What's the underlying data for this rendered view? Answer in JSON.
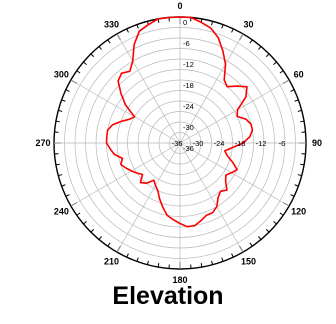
{
  "caption": "Elevation",
  "chart_data": {
    "type": "line",
    "subtype": "polar",
    "title": "Elevation",
    "angle_ticks": [
      "0",
      "30",
      "60",
      "90",
      "120",
      "150",
      "180",
      "210",
      "240",
      "270",
      "300",
      "330"
    ],
    "radial_ticks": [
      "0",
      "-6",
      "-12",
      "-18",
      "-24",
      "-30",
      "-36"
    ],
    "radial_range_db": [
      -36,
      0
    ],
    "theta_direction": "clockwise",
    "theta_zero": "top",
    "grid": true,
    "series": [
      {
        "color": "#ff0000",
        "theta_deg": [
          0,
          5,
          10,
          15,
          20,
          25,
          30,
          35,
          40,
          45,
          50,
          55,
          60,
          65,
          70,
          75,
          80,
          85,
          90,
          95,
          100,
          105,
          110,
          115,
          120,
          125,
          130,
          135,
          140,
          145,
          150,
          155,
          160,
          165,
          170,
          175,
          180,
          185,
          190,
          195,
          200,
          205,
          210,
          215,
          220,
          225,
          230,
          235,
          240,
          245,
          250,
          255,
          260,
          265,
          270,
          275,
          280,
          285,
          290,
          295,
          300,
          305,
          310,
          315,
          320,
          325,
          330,
          335,
          340,
          345,
          350,
          355
        ],
        "r_db": [
          0,
          0,
          -1,
          -2,
          -4,
          -7,
          -10,
          -14,
          -15,
          -13,
          -11,
          -13,
          -17,
          -18,
          -16,
          -15,
          -15,
          -16,
          -18,
          -21,
          -23,
          -22,
          -20,
          -18,
          -19,
          -20,
          -19,
          -17,
          -18,
          -17,
          -15,
          -14,
          -14,
          -13,
          -12,
          -12,
          -13,
          -14,
          -15,
          -17,
          -19,
          -21,
          -22,
          -23,
          -21,
          -20,
          -22,
          -21,
          -20,
          -19,
          -18,
          -19,
          -17,
          -16,
          -15,
          -15,
          -15,
          -16,
          -18,
          -20,
          -21,
          -17,
          -14,
          -11,
          -10,
          -11,
          -9,
          -5,
          -2,
          -1,
          0,
          0
        ]
      }
    ]
  }
}
